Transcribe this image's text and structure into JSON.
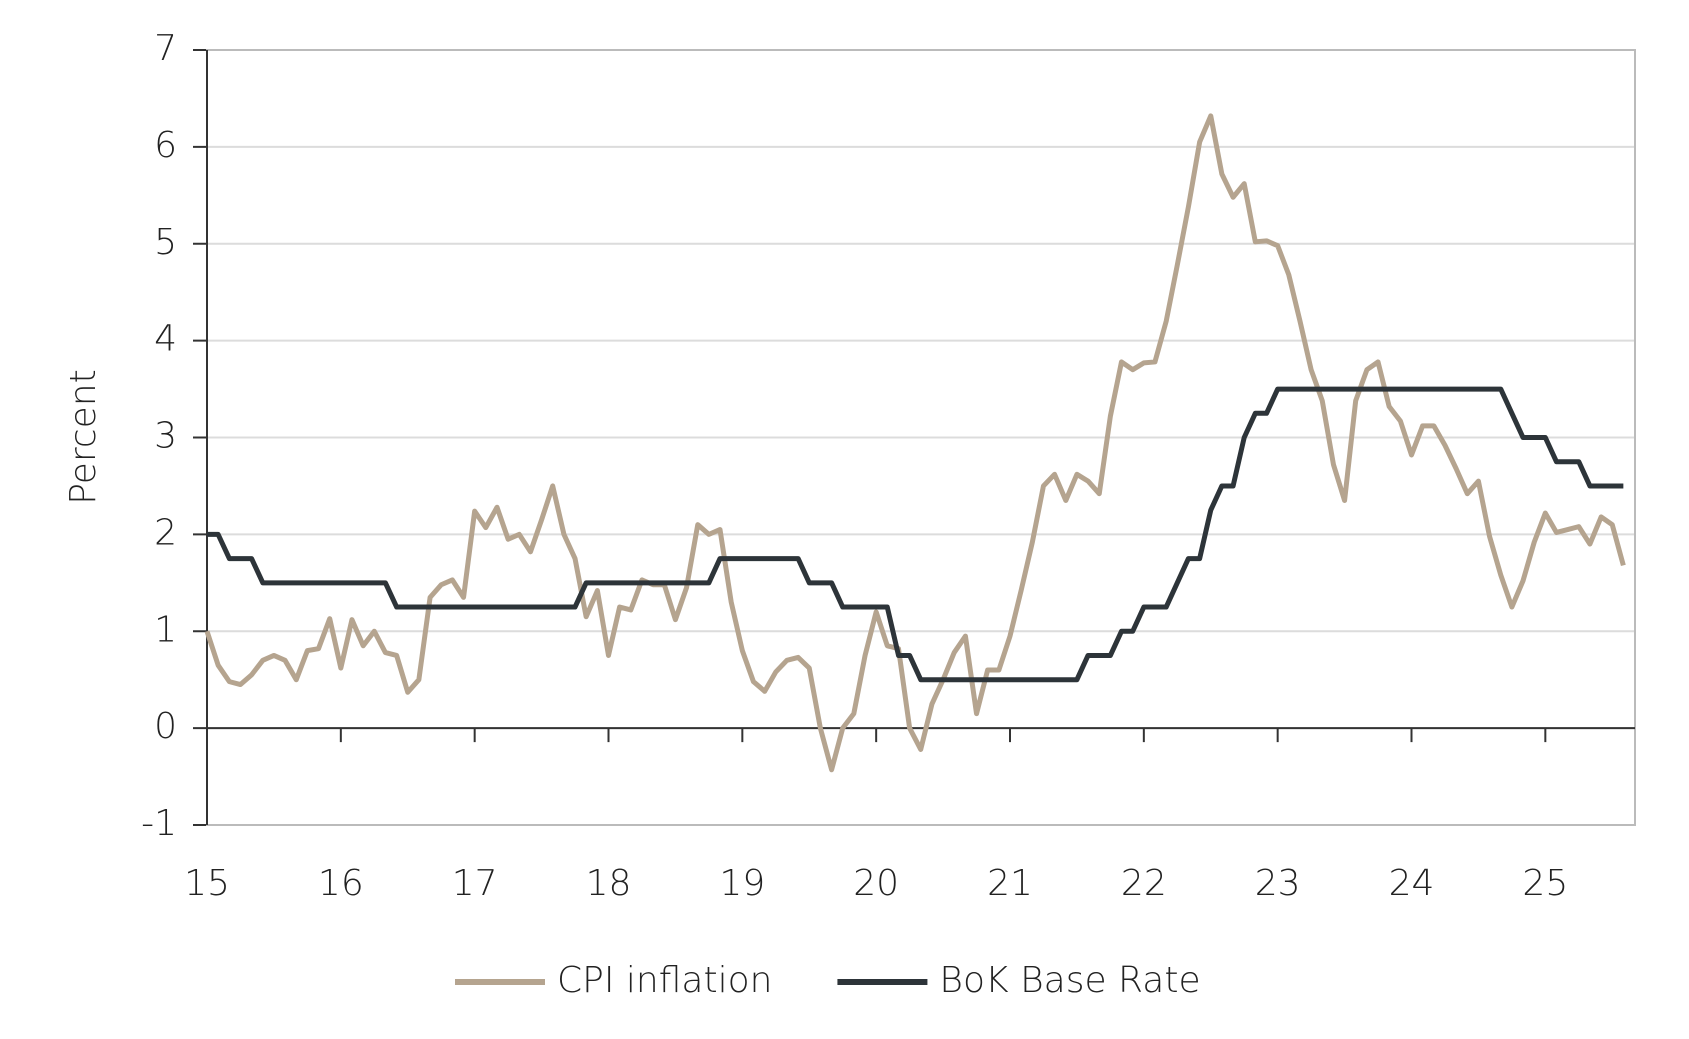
{
  "chart_data": {
    "type": "line",
    "y_label": "Percent",
    "x": [
      15,
      15.083,
      15.167,
      15.25,
      15.333,
      15.417,
      15.5,
      15.583,
      15.667,
      15.75,
      15.833,
      15.917,
      16,
      16.083,
      16.167,
      16.25,
      16.333,
      16.417,
      16.5,
      16.583,
      16.667,
      16.75,
      16.833,
      16.917,
      17,
      17.083,
      17.167,
      17.25,
      17.333,
      17.417,
      17.5,
      17.583,
      17.667,
      17.75,
      17.833,
      17.917,
      18,
      18.083,
      18.167,
      18.25,
      18.333,
      18.417,
      18.5,
      18.583,
      18.667,
      18.75,
      18.833,
      18.917,
      19,
      19.083,
      19.167,
      19.25,
      19.333,
      19.417,
      19.5,
      19.583,
      19.667,
      19.75,
      19.833,
      19.917,
      20,
      20.083,
      20.167,
      20.25,
      20.333,
      20.417,
      20.5,
      20.583,
      20.667,
      20.75,
      20.833,
      20.917,
      21,
      21.083,
      21.167,
      21.25,
      21.333,
      21.417,
      21.5,
      21.583,
      21.667,
      21.75,
      21.833,
      21.917,
      22,
      22.083,
      22.167,
      22.25,
      22.333,
      22.417,
      22.5,
      22.583,
      22.667,
      22.75,
      22.833,
      22.917,
      23,
      23.083,
      23.167,
      23.25,
      23.333,
      23.417,
      23.5,
      23.583,
      23.667,
      23.75,
      23.833,
      23.917,
      24,
      24.083,
      24.167,
      24.25,
      24.333,
      24.417,
      24.5,
      24.583,
      24.667,
      24.75,
      24.833,
      24.917,
      25,
      25.083,
      25.167,
      25.25,
      25.333,
      25.417,
      25.5,
      25.583
    ],
    "series": [
      {
        "name": "CPI inflation",
        "color": "#b5a48f",
        "values": [
          1.0,
          0.65,
          0.48,
          0.45,
          0.55,
          0.7,
          0.75,
          0.7,
          0.5,
          0.8,
          0.82,
          1.13,
          0.62,
          1.12,
          0.85,
          1.0,
          0.78,
          0.75,
          0.37,
          0.5,
          1.35,
          1.48,
          1.53,
          1.35,
          2.24,
          2.07,
          2.28,
          1.95,
          2.0,
          1.82,
          2.15,
          2.5,
          2.0,
          1.75,
          1.15,
          1.42,
          0.75,
          1.25,
          1.22,
          1.53,
          1.48,
          1.48,
          1.12,
          1.45,
          2.1,
          2.0,
          2.05,
          1.3,
          0.8,
          0.48,
          0.38,
          0.58,
          0.7,
          0.73,
          0.62,
          0.0,
          -0.43,
          0.0,
          0.15,
          0.75,
          1.2,
          0.85,
          0.82,
          0.0,
          -0.22,
          0.25,
          0.5,
          0.78,
          0.95,
          0.15,
          0.6,
          0.6,
          0.95,
          1.42,
          1.92,
          2.5,
          2.62,
          2.35,
          2.62,
          2.55,
          2.42,
          3.22,
          3.78,
          3.7,
          3.77,
          3.78,
          4.2,
          4.78,
          5.38,
          6.05,
          6.32,
          5.72,
          5.48,
          5.62,
          5.02,
          5.03,
          4.98,
          4.68,
          4.2,
          3.7,
          3.38,
          2.72,
          2.35,
          3.38,
          3.7,
          3.78,
          3.32,
          3.17,
          2.82,
          3.12,
          3.12,
          2.92,
          2.68,
          2.42,
          2.55,
          1.98,
          1.58,
          1.25,
          1.52,
          1.92,
          2.22,
          2.02,
          2.05,
          2.08,
          1.9,
          2.18,
          2.1,
          1.68
        ]
      },
      {
        "name": "BoK Base Rate",
        "color": "#2d3439",
        "values": [
          2.0,
          2.0,
          1.75,
          1.75,
          1.75,
          1.5,
          1.5,
          1.5,
          1.5,
          1.5,
          1.5,
          1.5,
          1.5,
          1.5,
          1.5,
          1.5,
          1.5,
          1.25,
          1.25,
          1.25,
          1.25,
          1.25,
          1.25,
          1.25,
          1.25,
          1.25,
          1.25,
          1.25,
          1.25,
          1.25,
          1.25,
          1.25,
          1.25,
          1.25,
          1.5,
          1.5,
          1.5,
          1.5,
          1.5,
          1.5,
          1.5,
          1.5,
          1.5,
          1.5,
          1.5,
          1.5,
          1.75,
          1.75,
          1.75,
          1.75,
          1.75,
          1.75,
          1.75,
          1.75,
          1.5,
          1.5,
          1.5,
          1.25,
          1.25,
          1.25,
          1.25,
          1.25,
          0.75,
          0.75,
          0.5,
          0.5,
          0.5,
          0.5,
          0.5,
          0.5,
          0.5,
          0.5,
          0.5,
          0.5,
          0.5,
          0.5,
          0.5,
          0.5,
          0.5,
          0.75,
          0.75,
          0.75,
          1.0,
          1.0,
          1.25,
          1.25,
          1.25,
          1.5,
          1.75,
          1.75,
          2.25,
          2.5,
          2.5,
          3.0,
          3.25,
          3.25,
          3.5,
          3.5,
          3.5,
          3.5,
          3.5,
          3.5,
          3.5,
          3.5,
          3.5,
          3.5,
          3.5,
          3.5,
          3.5,
          3.5,
          3.5,
          3.5,
          3.5,
          3.5,
          3.5,
          3.5,
          3.5,
          3.25,
          3.0,
          3.0,
          3.0,
          2.75,
          2.75,
          2.75,
          2.5,
          2.5,
          2.5,
          2.5
        ]
      }
    ],
    "xlim": [
      15,
      25.67
    ],
    "xticks": [
      15,
      16,
      17,
      18,
      19,
      20,
      21,
      22,
      23,
      24,
      25
    ],
    "ylim": [
      -1,
      7
    ],
    "yticks": [
      -1,
      0,
      1,
      2,
      3,
      4,
      5,
      6,
      7
    ],
    "grid": true,
    "legend": "bottom"
  }
}
